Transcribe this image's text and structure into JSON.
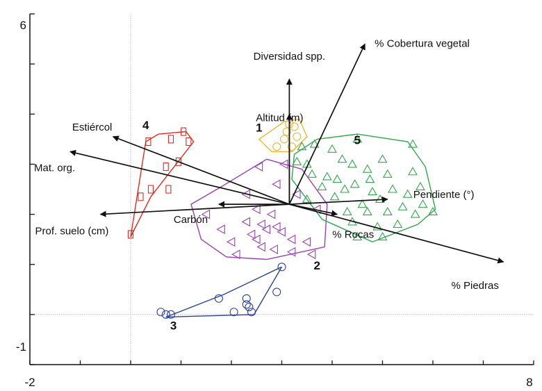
{
  "chart_data": {
    "type": "scatter",
    "title": "",
    "xlabel": "",
    "ylabel": "",
    "xlim": [
      -2,
      8
    ],
    "ylim": [
      -1,
      6
    ],
    "x_tick_labels": [
      "-2",
      "8"
    ],
    "y_tick_labels": [
      "6",
      "-1"
    ],
    "grid": false,
    "reference_lines": {
      "x": 0,
      "y": 0
    },
    "vectors": [
      {
        "label": "% Cobertura vegetal",
        "from": [
          3.15,
          2.2
        ],
        "to": [
          4.65,
          5.4
        ]
      },
      {
        "label": "Diversidad spp.",
        "from": [
          3.15,
          2.2
        ],
        "to": [
          3.15,
          4.7
        ]
      },
      {
        "label": "Altitud (m)",
        "from": [
          3.15,
          2.2
        ],
        "to": [
          3.15,
          4.0
        ]
      },
      {
        "label": "Estiércol",
        "from": [
          3.15,
          2.2
        ],
        "to": [
          -0.35,
          3.55
        ]
      },
      {
        "label": "Mat. org.",
        "from": [
          3.15,
          2.2
        ],
        "to": [
          -1.2,
          3.25
        ]
      },
      {
        "label": "Prof. suelo (cm)",
        "from": [
          3.15,
          2.2
        ],
        "to": [
          -0.6,
          2.0
        ]
      },
      {
        "label": "Carbón",
        "from": [
          3.15,
          2.2
        ],
        "to": [
          1.75,
          2.2
        ]
      },
      {
        "label": "% Rocas",
        "from": [
          3.15,
          2.2
        ],
        "to": [
          4.1,
          2.0
        ]
      },
      {
        "label": "Pendiente (°)",
        "from": [
          3.15,
          2.2
        ],
        "to": [
          5.1,
          2.3
        ]
      },
      {
        "label": "% Piedras",
        "from": [
          3.15,
          2.2
        ],
        "to": [
          7.4,
          1.05
        ]
      }
    ],
    "groups": [
      {
        "name": "1",
        "color": "#e8b830",
        "marker": "circle",
        "hull": [
          [
            3.05,
            3.85
          ],
          [
            3.35,
            3.9
          ],
          [
            3.5,
            3.55
          ],
          [
            3.2,
            3.25
          ],
          [
            2.8,
            3.25
          ],
          [
            2.55,
            3.5
          ],
          [
            3.05,
            3.85
          ]
        ],
        "points": [
          [
            3.15,
            3.8
          ],
          [
            3.25,
            3.75
          ],
          [
            3.1,
            3.65
          ],
          [
            3.3,
            3.55
          ],
          [
            3.05,
            3.5
          ],
          [
            2.9,
            3.35
          ],
          [
            3.2,
            3.35
          ]
        ]
      },
      {
        "name": "2",
        "color": "#9b3fb5",
        "marker": "triangle-left",
        "hull": [
          [
            2.7,
            3.1
          ],
          [
            3.4,
            2.9
          ],
          [
            3.9,
            2.2
          ],
          [
            3.85,
            1.35
          ],
          [
            2.7,
            1.1
          ],
          [
            1.9,
            1.15
          ],
          [
            1.4,
            1.5
          ],
          [
            1.2,
            2.2
          ],
          [
            1.8,
            2.55
          ],
          [
            2.7,
            3.1
          ]
        ],
        "points": [
          [
            2.3,
            2.4
          ],
          [
            2.5,
            2.1
          ],
          [
            2.8,
            2.0
          ],
          [
            2.3,
            1.85
          ],
          [
            2.6,
            1.8
          ],
          [
            2.7,
            1.7
          ],
          [
            2.9,
            1.75
          ],
          [
            3.0,
            1.65
          ],
          [
            2.4,
            1.6
          ],
          [
            2.5,
            1.5
          ],
          [
            3.2,
            1.5
          ],
          [
            3.5,
            1.45
          ],
          [
            2.0,
            1.45
          ],
          [
            2.6,
            1.35
          ],
          [
            2.85,
            1.3
          ],
          [
            3.2,
            1.25
          ],
          [
            2.1,
            1.2
          ],
          [
            3.6,
            1.2
          ],
          [
            1.5,
            2.0
          ],
          [
            1.8,
            1.7
          ],
          [
            3.7,
            2.1
          ],
          [
            3.3,
            2.4
          ],
          [
            2.9,
            2.6
          ],
          [
            2.55,
            2.95
          ],
          [
            3.05,
            3.0
          ]
        ]
      },
      {
        "name": "3",
        "color": "#2b3f9e",
        "marker": "circle",
        "hull": [
          [
            3.0,
            0.95
          ],
          [
            2.45,
            0.0
          ],
          [
            0.7,
            -0.05
          ],
          [
            1.85,
            0.4
          ],
          [
            3.0,
            0.95
          ]
        ],
        "points": [
          [
            3.0,
            0.95
          ],
          [
            2.9,
            0.45
          ],
          [
            1.75,
            0.32
          ],
          [
            2.3,
            0.32
          ],
          [
            2.3,
            0.2
          ],
          [
            2.35,
            0.15
          ],
          [
            0.6,
            0.05
          ],
          [
            0.7,
            0.0
          ],
          [
            0.8,
            0.0
          ],
          [
            2.05,
            0.05
          ],
          [
            2.4,
            0.05
          ]
        ]
      },
      {
        "name": "4",
        "color": "#e02a20",
        "marker": "square",
        "hull": [
          [
            0.55,
            3.6
          ],
          [
            1.1,
            3.65
          ],
          [
            1.25,
            3.45
          ],
          [
            0.4,
            2.35
          ],
          [
            0.0,
            1.55
          ],
          [
            0.3,
            3.45
          ],
          [
            0.55,
            3.6
          ]
        ],
        "points": [
          [
            1.05,
            3.65
          ],
          [
            0.8,
            3.5
          ],
          [
            1.15,
            3.45
          ],
          [
            0.35,
            3.45
          ],
          [
            0.95,
            3.05
          ],
          [
            0.7,
            2.95
          ],
          [
            0.4,
            2.5
          ],
          [
            0.75,
            2.5
          ],
          [
            0.2,
            2.35
          ],
          [
            0.0,
            1.6
          ]
        ]
      },
      {
        "name": "5",
        "color": "#2ea84a",
        "marker": "triangle",
        "hull": [
          [
            3.7,
            3.5
          ],
          [
            4.5,
            3.6
          ],
          [
            5.5,
            3.45
          ],
          [
            5.85,
            2.95
          ],
          [
            6.05,
            2.1
          ],
          [
            5.7,
            1.8
          ],
          [
            4.8,
            1.45
          ],
          [
            3.8,
            1.9
          ],
          [
            3.2,
            2.7
          ],
          [
            3.25,
            3.2
          ],
          [
            3.7,
            3.5
          ]
        ],
        "points": [
          [
            3.4,
            3.35
          ],
          [
            3.65,
            3.4
          ],
          [
            4.0,
            3.3
          ],
          [
            4.5,
            3.5
          ],
          [
            5.0,
            3.1
          ],
          [
            5.6,
            3.4
          ],
          [
            3.3,
            3.05
          ],
          [
            3.5,
            3.0
          ],
          [
            4.2,
            3.1
          ],
          [
            4.4,
            3.0
          ],
          [
            4.7,
            2.9
          ],
          [
            3.6,
            2.8
          ],
          [
            3.9,
            2.75
          ],
          [
            4.1,
            2.7
          ],
          [
            4.45,
            2.6
          ],
          [
            4.75,
            2.7
          ],
          [
            5.1,
            2.8
          ],
          [
            5.6,
            2.85
          ],
          [
            3.8,
            2.55
          ],
          [
            4.25,
            2.5
          ],
          [
            4.8,
            2.45
          ],
          [
            5.2,
            2.5
          ],
          [
            5.5,
            2.4
          ],
          [
            5.75,
            2.55
          ],
          [
            3.5,
            2.3
          ],
          [
            4.05,
            2.35
          ],
          [
            4.6,
            2.2
          ],
          [
            4.95,
            2.3
          ],
          [
            5.4,
            2.15
          ],
          [
            5.8,
            2.2
          ],
          [
            4.3,
            2.05
          ],
          [
            4.7,
            2.05
          ],
          [
            5.1,
            2.05
          ],
          [
            5.65,
            2.0
          ],
          [
            6.0,
            2.05
          ],
          [
            4.4,
            1.85
          ],
          [
            4.9,
            1.75
          ],
          [
            5.3,
            1.8
          ],
          [
            4.5,
            1.55
          ],
          [
            5.0,
            1.55
          ]
        ]
      }
    ]
  }
}
